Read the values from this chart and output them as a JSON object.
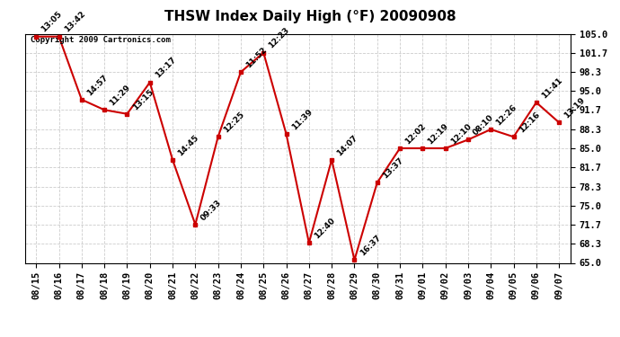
{
  "title": "THSW Index Daily High (°F) 20090908",
  "copyright": "Copyright 2009 Cartronics.com",
  "dates": [
    "08/15",
    "08/16",
    "08/17",
    "08/18",
    "08/19",
    "08/20",
    "08/21",
    "08/22",
    "08/23",
    "08/24",
    "08/25",
    "08/26",
    "08/27",
    "08/28",
    "08/29",
    "08/30",
    "08/31",
    "09/01",
    "09/02",
    "09/03",
    "09/04",
    "09/05",
    "09/06",
    "09/07"
  ],
  "values": [
    104.5,
    104.5,
    93.5,
    91.7,
    91.0,
    96.5,
    83.0,
    71.7,
    87.0,
    98.3,
    101.7,
    87.5,
    68.5,
    83.0,
    65.5,
    79.0,
    85.0,
    85.0,
    85.0,
    86.5,
    88.3,
    87.0,
    93.0,
    89.5
  ],
  "labels": [
    "13:05",
    "13:42",
    "14:57",
    "11:29",
    "13:15",
    "13:17",
    "14:45",
    "09:33",
    "12:25",
    "11:52",
    "12:23",
    "11:39",
    "12:40",
    "14:07",
    "16:37",
    "13:37",
    "12:02",
    "12:19",
    "12:10",
    "08:10",
    "12:26",
    "12:16",
    "11:41",
    "13:19"
  ],
  "ylim": [
    65.0,
    105.0
  ],
  "yticks": [
    65.0,
    68.3,
    71.7,
    75.0,
    78.3,
    81.7,
    85.0,
    88.3,
    91.7,
    95.0,
    98.3,
    101.7,
    105.0
  ],
  "line_color": "#cc0000",
  "marker_color": "#cc0000",
  "bg_color": "#ffffff",
  "grid_color": "#cccccc",
  "title_fontsize": 11,
  "label_fontsize": 6.5,
  "tick_fontsize": 7.5,
  "copyright_fontsize": 6.5
}
